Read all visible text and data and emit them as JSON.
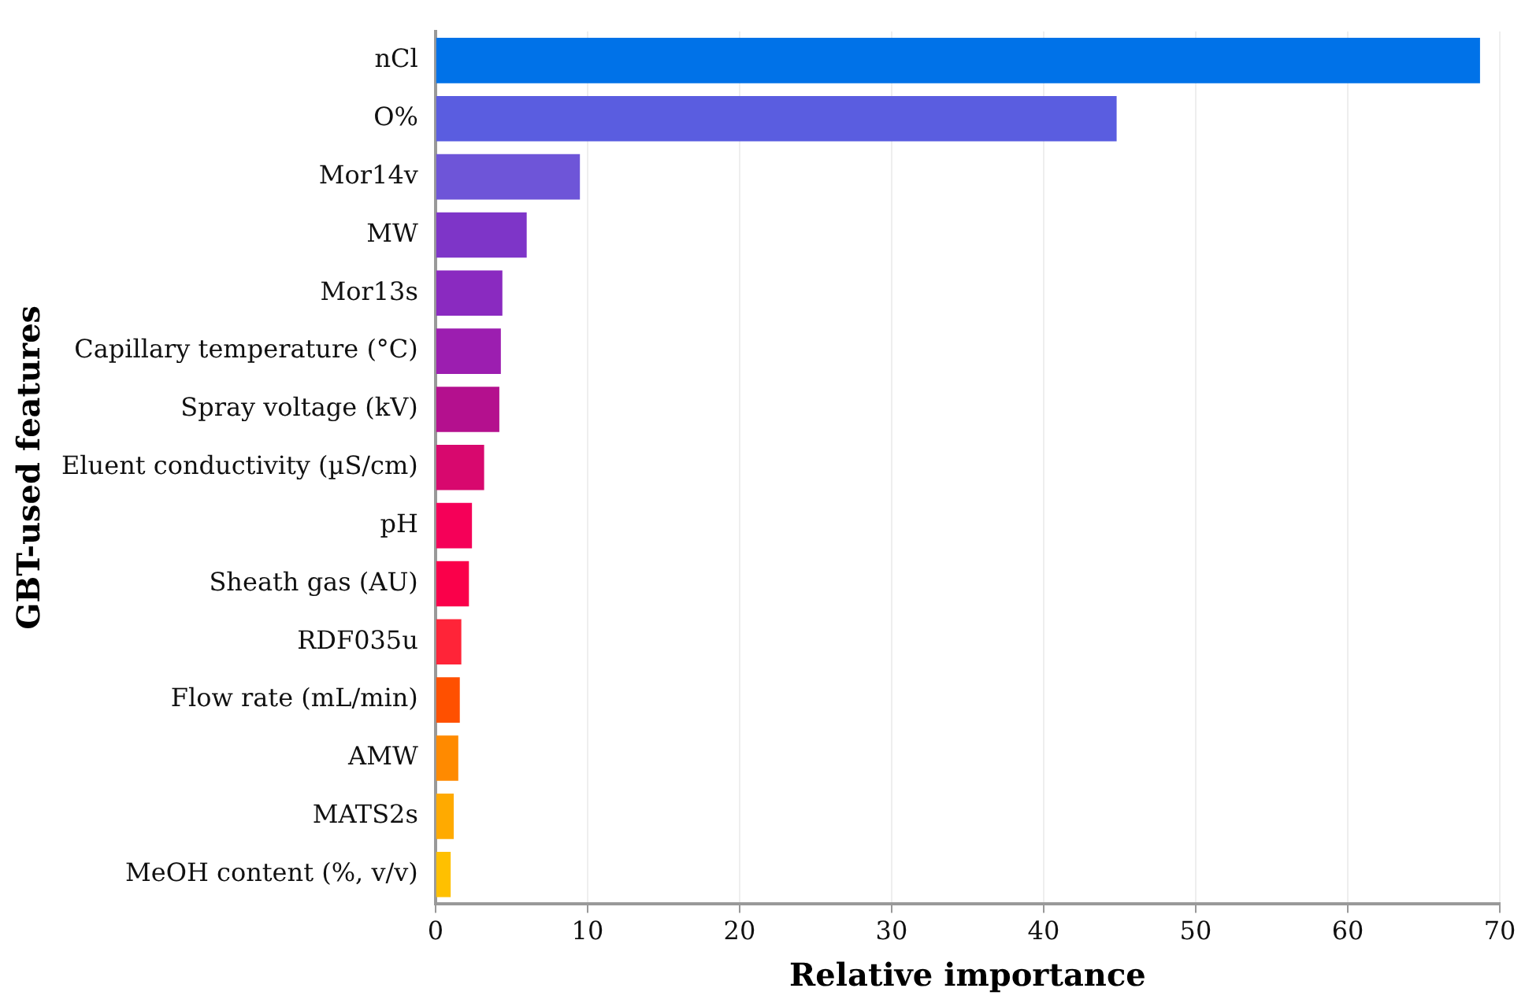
{
  "chart_data": {
    "type": "bar",
    "orientation": "horizontal",
    "xlabel": "Relative importance",
    "ylabel": "GBT-used features",
    "categories": [
      "nCl",
      "O%",
      "Mor14v",
      "MW",
      "Mor13s",
      "Capillary temperature (°C)",
      "Spray voltage (kV)",
      "Eluent conductivity (µS/cm)",
      "pH",
      "Sheath gas (AU)",
      "RDF035u",
      "Flow rate (mL/min)",
      "AMW",
      "MATS2s",
      "MeOH content (%, v/v)"
    ],
    "values": [
      68.7,
      44.8,
      9.5,
      6.0,
      4.4,
      4.3,
      4.2,
      3.2,
      2.4,
      2.2,
      1.7,
      1.6,
      1.5,
      1.2,
      1.0
    ],
    "colors": [
      "#0072e8",
      "#5a5de0",
      "#6e55d8",
      "#7e35c8",
      "#8a2ac0",
      "#9c1eb0",
      "#b4108e",
      "#d8086e",
      "#f50058",
      "#fa004a",
      "#ff2438",
      "#ff5000",
      "#ff8a00",
      "#ffaa00",
      "#ffc000"
    ],
    "xlim": [
      0,
      70
    ],
    "xticks": [
      0,
      10,
      20,
      30,
      40,
      50,
      60,
      70
    ],
    "grid": "x"
  }
}
